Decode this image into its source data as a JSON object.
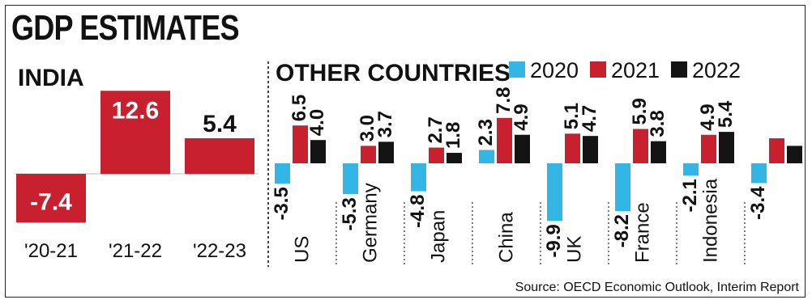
{
  "title": "GDP ESTIMATES",
  "source": "Source: OECD Economic Outlook, Interim Report",
  "colors": {
    "y2020": "#34b6e4",
    "y2021": "#c8202f",
    "y2022": "#141414"
  },
  "chart_data": [
    {
      "type": "bar",
      "title": "INDIA",
      "categories": [
        "'20-21",
        "'21-22",
        "'22-23"
      ],
      "values": [
        -7.4,
        12.6,
        5.4
      ],
      "value_labels": [
        "-7.4",
        "12.6",
        "5.4"
      ],
      "color": "#c8202f"
    },
    {
      "type": "bar",
      "title": "OTHER COUNTRIES",
      "legend_position": "top",
      "categories": [
        "US",
        "Germany",
        "Japan",
        "China",
        "UK",
        "France",
        "Indonesia",
        ""
      ],
      "series": [
        {
          "name": "2020",
          "color": "#34b6e4",
          "values": [
            -3.5,
            -5.3,
            -4.8,
            2.3,
            -9.9,
            -8.2,
            -2.1,
            -3.4
          ],
          "labels": [
            "-3.5",
            "-5.3",
            "-4.8",
            "2.3",
            "-9.9",
            "-8.2",
            "-2.1",
            "-3.4"
          ]
        },
        {
          "name": "2021",
          "color": "#c8202f",
          "values": [
            6.5,
            3.0,
            2.7,
            7.8,
            5.1,
            5.9,
            4.9,
            4.3
          ],
          "labels": [
            "6.5",
            "3.0",
            "2.7",
            "7.8",
            "5.1",
            "5.9",
            "4.9",
            ""
          ]
        },
        {
          "name": "2022",
          "color": "#141414",
          "values": [
            4.0,
            3.7,
            1.8,
            4.9,
            4.7,
            3.8,
            5.4,
            3.0
          ],
          "labels": [
            "4.0",
            "3.7",
            "1.8",
            "4.9",
            "4.7",
            "3.8",
            "5.4",
            ""
          ]
        }
      ]
    }
  ]
}
